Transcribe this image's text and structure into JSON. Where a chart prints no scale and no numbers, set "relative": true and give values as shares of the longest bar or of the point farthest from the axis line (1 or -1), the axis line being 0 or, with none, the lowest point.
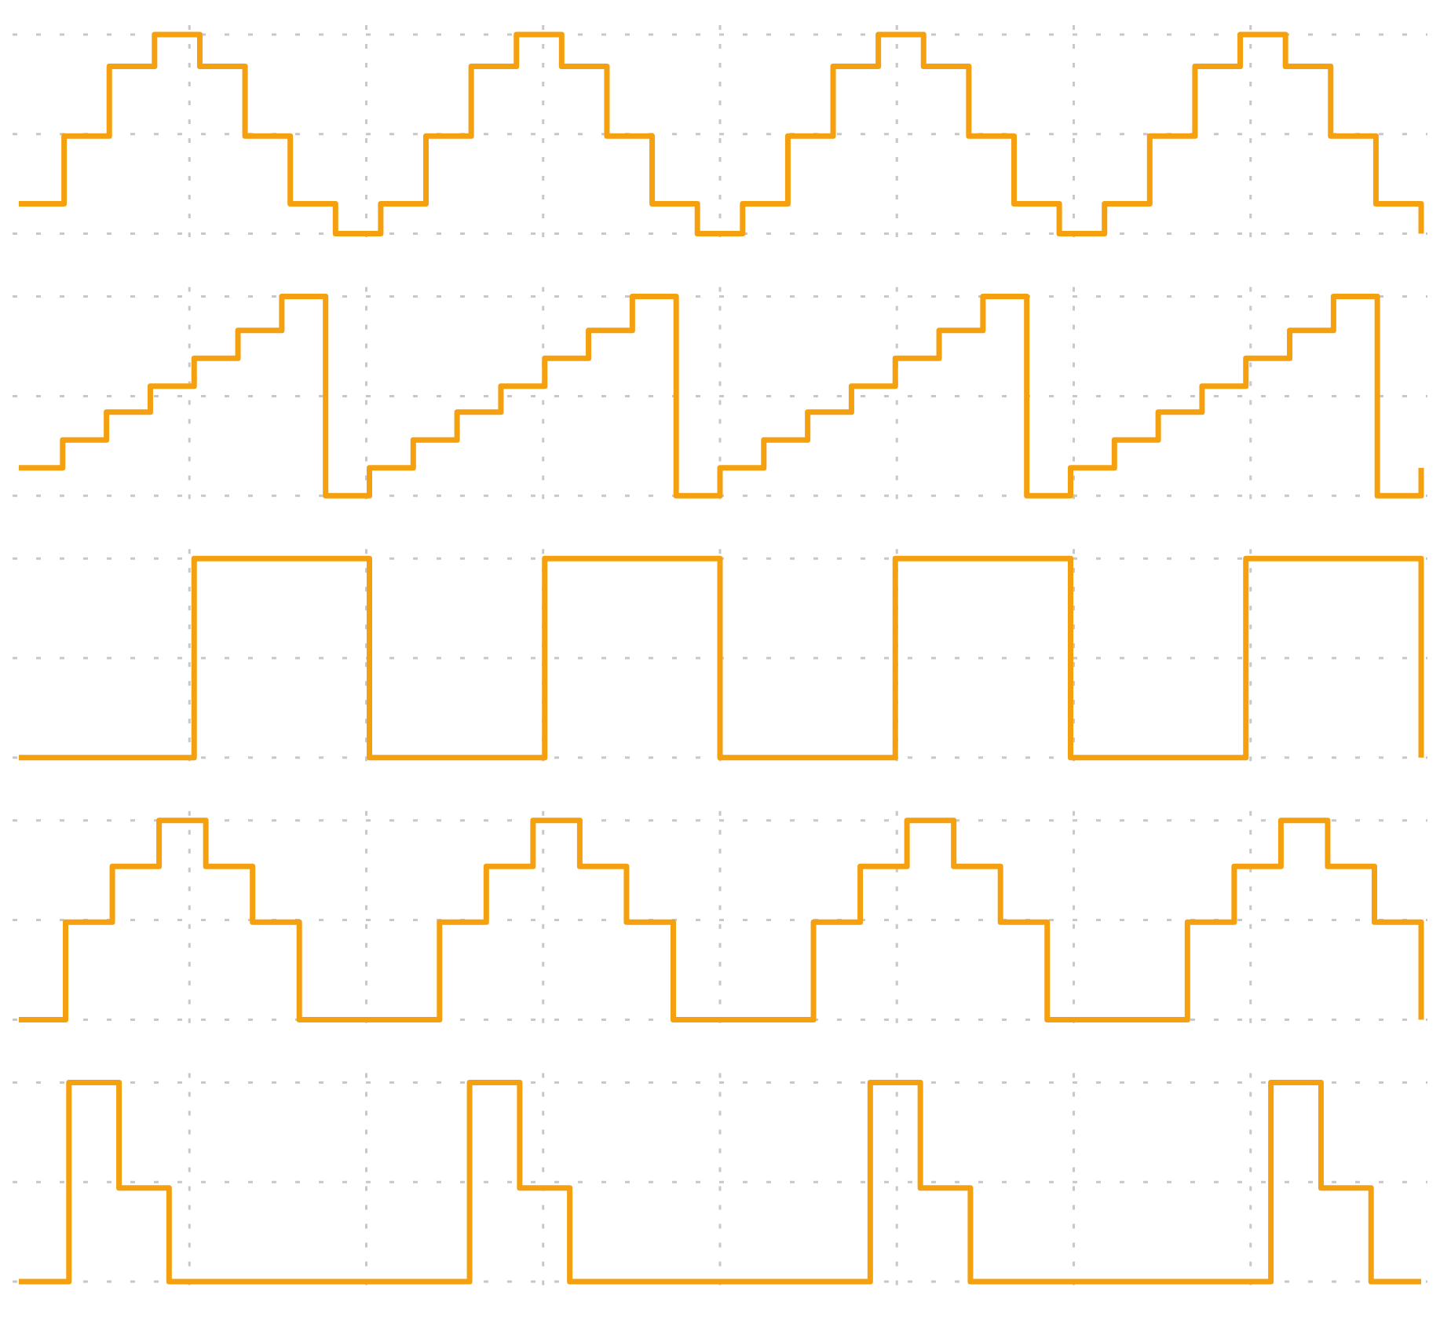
{
  "chart_data": [
    {
      "type": "step",
      "relative": true,
      "grid": true,
      "color": "#f5a00f",
      "categories": [
        null,
        null,
        null,
        null,
        null,
        null,
        null,
        null,
        null,
        null,
        null,
        null,
        null,
        null,
        null,
        null,
        null,
        null,
        null,
        null,
        null,
        null,
        null,
        null,
        null,
        null,
        null,
        null,
        null,
        null,
        null,
        null
      ],
      "values": [
        0.15,
        0.49,
        0.84,
        1,
        0.84,
        0.49,
        0.15,
        0,
        0.15,
        0.49,
        0.84,
        1,
        0.84,
        0.49,
        0.15,
        0,
        0.15,
        0.49,
        0.84,
        1,
        0.84,
        0.49,
        0.15,
        0,
        0.15,
        0.49,
        0.84,
        1,
        0.84,
        0.49,
        0.15,
        0
      ]
    },
    {
      "type": "step",
      "relative": true,
      "grid": true,
      "color": "#f5a00f",
      "categories": [
        null,
        null,
        null,
        null,
        null,
        null,
        null,
        null,
        null,
        null,
        null,
        null,
        null,
        null,
        null,
        null,
        null,
        null,
        null,
        null,
        null,
        null,
        null,
        null,
        null,
        null,
        null,
        null,
        null,
        null,
        null,
        null,
        null
      ],
      "values": [
        0.14,
        0.28,
        0.42,
        0.55,
        0.69,
        0.83,
        1,
        0,
        0.14,
        0.28,
        0.42,
        0.55,
        0.69,
        0.83,
        1,
        0,
        0.14,
        0.28,
        0.42,
        0.55,
        0.69,
        0.83,
        1,
        0,
        0.14,
        0.28,
        0.42,
        0.55,
        0.69,
        0.83,
        1,
        0,
        0.14
      ]
    },
    {
      "type": "step",
      "relative": true,
      "grid": true,
      "color": "#f5a00f",
      "categories": [
        null,
        null,
        null,
        null,
        null,
        null,
        null,
        null,
        null
      ],
      "values": [
        0,
        1,
        0,
        1,
        0,
        1,
        0,
        1,
        0
      ]
    },
    {
      "type": "step",
      "relative": true,
      "grid": true,
      "color": "#f5a00f",
      "categories": [
        null,
        null,
        null,
        null,
        null,
        null,
        null,
        null,
        null,
        null,
        null,
        null,
        null,
        null,
        null,
        null,
        null,
        null,
        null,
        null,
        null,
        null,
        null,
        null,
        null,
        null,
        null,
        null,
        null,
        null,
        null
      ],
      "values": [
        0,
        0.49,
        0.77,
        1,
        0.77,
        0.49,
        0,
        0,
        0,
        0.49,
        0.77,
        1,
        0.77,
        0.49,
        0,
        0,
        0,
        0.49,
        0.77,
        1,
        0.77,
        0.49,
        0,
        0,
        0,
        0.49,
        0.77,
        1,
        0.77,
        0.49,
        0
      ]
    },
    {
      "type": "step",
      "relative": true,
      "grid": true,
      "color": "#f5a00f",
      "categories": [
        null,
        null,
        null,
        null,
        null,
        null,
        null,
        null,
        null,
        null,
        null,
        null,
        null,
        null,
        null,
        null,
        null,
        null,
        null,
        null,
        null,
        null,
        null,
        null,
        null,
        null,
        null,
        null,
        null
      ],
      "values": [
        0,
        1,
        0.47,
        0,
        0,
        0,
        0,
        0,
        0,
        1,
        0.47,
        0,
        0,
        0,
        0,
        0,
        0,
        1,
        0.47,
        0,
        0,
        0,
        0,
        0,
        0,
        1,
        0.47,
        0,
        0
      ]
    }
  ]
}
